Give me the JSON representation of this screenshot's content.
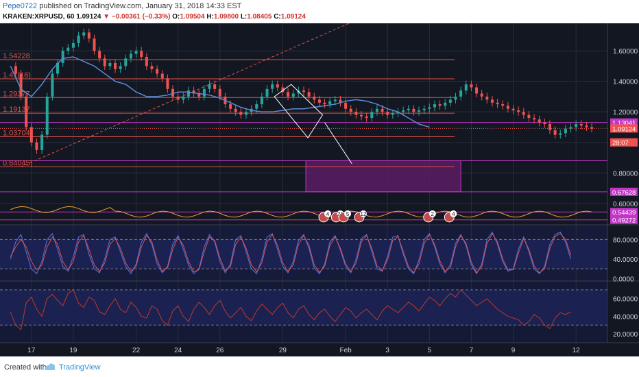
{
  "header": {
    "publisher": "Pepe0722",
    "published_text": "published on TradingView.com, January 31, 2018 14:33 EST",
    "symbol": "KRAKEN:XRPUSD, 60",
    "last": "1.09124",
    "change": "▼ −0.00361 (−0.33%)",
    "o_label": "O:",
    "o": "1.09504",
    "h_label": "H:",
    "h": "1.09800",
    "l_label": "L:",
    "l": "1.08405",
    "c_label": "C:",
    "c": "1.09124"
  },
  "footer": {
    "created_with": "Created with",
    "brand": "TradingView"
  },
  "colors": {
    "background": "#131722",
    "grid": "#2a2e39",
    "candle_up": "#26a69a",
    "candle_down": "#ef5350",
    "ma": "#5b8bd6",
    "fib_line": "#e0524a",
    "purple": "#c236c7",
    "purple_fill": "#5b1c63",
    "osc_band": "#1b2150",
    "stoch_k": "#4c6bd6",
    "stoch_d": "#e0524a",
    "rsi": "#c0392b",
    "volume_ma": "#f0a030"
  },
  "chart_data": {
    "type": "candlestick",
    "symbol": "KRAKEN:XRPUSD",
    "interval": "60",
    "x_labels": [
      "17",
      "19",
      "22",
      "24",
      "26",
      "29",
      "Feb",
      "3",
      "5",
      "7",
      "9",
      "12"
    ],
    "price_axis_ticks": [
      "1.60000",
      "1.40000",
      "1.20000",
      "1",
      "0.80000",
      "0.60000"
    ],
    "ylim": [
      0.46,
      1.78
    ],
    "price_labels": [
      {
        "value": 1.13041,
        "text": "1.13041",
        "color": "#c236c7"
      },
      {
        "value": 1.09124,
        "text": "1.09124",
        "color": "#ef5350"
      },
      {
        "value": 1.0,
        "text": "28:07",
        "color": "#ef5350"
      },
      {
        "value": 0.67628,
        "text": "0.67628",
        "color": "#c236c7"
      },
      {
        "value": 0.54439,
        "text": "0.54439",
        "color": "#c236c7"
      },
      {
        "value": 0.49272,
        "text": "0.49272",
        "color": "#c236c7"
      }
    ],
    "fib_levels": [
      {
        "label": "1.54228",
        "value": 1.54228
      },
      {
        "label": "1.41616",
        "value": 1.41616
      },
      {
        "label": "1.29377",
        "value": 1.29377
      },
      {
        "label": "1.19137",
        "value": 1.19137
      },
      {
        "label": "1.03704",
        "value": 1.03704
      },
      {
        "label": "0.84045",
        "value": 0.84045
      }
    ],
    "fib_level_labels_shown": [
      "1.54228",
      "1.41(16)",
      "1.29377",
      "1.19137",
      "1.03704",
      "0.84045)"
    ],
    "horizontal_lines": [
      1.13041,
      0.88,
      0.67628,
      0.54439,
      0.49272
    ],
    "box": {
      "x_from": 30.1,
      "x_to": 37.5,
      "y_from": 0.67628,
      "y_to": 0.88
    },
    "trendline": {
      "x1": 16.5,
      "y1": 0.84,
      "x2": 35.0,
      "y2": 1.95
    },
    "channel": {
      "points": [
        [
          28.6,
          1.3
        ],
        [
          30.2,
          1.03
        ],
        [
          30.9,
          1.18
        ],
        [
          29.4,
          1.38
        ]
      ]
    },
    "projection": {
      "x1": 31.0,
      "y1": 1.13,
      "x2": 32.3,
      "y2": 0.86
    },
    "close_series": {
      "x_start": 16.0,
      "x_step": 0.25,
      "values": [
        1.5,
        1.45,
        1.3,
        1.1,
        1.0,
        0.95,
        1.05,
        1.3,
        1.45,
        1.52,
        1.6,
        1.62,
        1.65,
        1.7,
        1.72,
        1.68,
        1.6,
        1.55,
        1.5,
        1.52,
        1.48,
        1.5,
        1.55,
        1.58,
        1.6,
        1.56,
        1.5,
        1.48,
        1.45,
        1.42,
        1.35,
        1.3,
        1.28,
        1.3,
        1.34,
        1.32,
        1.3,
        1.35,
        1.38,
        1.35,
        1.3,
        1.25,
        1.22,
        1.2,
        1.18,
        1.2,
        1.22,
        1.25,
        1.3,
        1.35,
        1.38,
        1.36,
        1.33,
        1.3,
        1.32,
        1.34,
        1.33,
        1.3,
        1.28,
        1.26,
        1.25,
        1.27,
        1.28,
        1.26,
        1.22,
        1.2,
        1.18,
        1.17,
        1.16,
        1.2,
        1.22,
        1.2,
        1.18,
        1.19,
        1.2,
        1.21,
        1.22,
        1.2,
        1.21,
        1.22,
        1.23,
        1.25,
        1.24,
        1.26,
        1.28,
        1.3,
        1.34,
        1.38,
        1.36,
        1.32,
        1.3,
        1.28,
        1.26,
        1.25,
        1.24,
        1.22,
        1.21,
        1.2,
        1.18,
        1.16,
        1.15,
        1.13,
        1.12,
        1.08,
        1.05,
        1.06,
        1.09,
        1.1,
        1.12,
        1.11,
        1.1,
        1.09
      ]
    },
    "ma_series": {
      "x_start": 16.0,
      "x_step": 0.5,
      "values": [
        1.5,
        1.35,
        1.3,
        1.38,
        1.48,
        1.55,
        1.56,
        1.53,
        1.5,
        1.45,
        1.4,
        1.38,
        1.33,
        1.3,
        1.3,
        1.31,
        1.33,
        1.33,
        1.32,
        1.31,
        1.29,
        1.26,
        1.23,
        1.21,
        1.2,
        1.2,
        1.21,
        1.22,
        1.22,
        1.23,
        1.24,
        1.25,
        1.27,
        1.28,
        1.27,
        1.25,
        1.22,
        1.2,
        1.16,
        1.12,
        1.1
      ]
    },
    "event_markers": [
      {
        "x": 30.95,
        "label": "4"
      },
      {
        "x": 31.55,
        "label": "29"
      },
      {
        "x": 31.9,
        "label": "5"
      },
      {
        "x": 32.65,
        "label": "12"
      },
      {
        "x": 35.95,
        "label": "2"
      },
      {
        "x": 36.95,
        "label": "4"
      }
    ],
    "stoch_panel": {
      "axis_ticks": [
        "80.0000",
        "40.0000",
        "0.0000"
      ],
      "ylim": [
        -5,
        110
      ],
      "bands": [
        80,
        20
      ],
      "k_series": {
        "x_start": 16.0,
        "x_step": 0.25,
        "values": [
          40,
          75,
          90,
          55,
          20,
          10,
          35,
          80,
          92,
          60,
          25,
          15,
          45,
          85,
          90,
          50,
          20,
          12,
          40,
          80,
          85,
          55,
          25,
          10,
          30,
          75,
          92,
          70,
          30,
          12,
          25,
          70,
          88,
          60,
          28,
          10,
          20,
          65,
          90,
          75,
          35,
          12,
          30,
          80,
          88,
          55,
          20,
          10,
          40,
          85,
          92,
          60,
          25,
          12,
          35,
          78,
          90,
          62,
          22,
          10,
          30,
          75,
          88,
          58,
          25,
          12,
          40,
          82,
          90,
          55,
          20,
          15,
          45,
          85,
          88,
          50,
          20,
          10,
          38,
          80,
          92,
          65,
          30,
          12,
          28,
          72,
          90,
          68,
          28,
          10,
          30,
          80,
          95,
          70,
          35,
          15,
          20,
          60,
          85,
          55,
          20,
          10,
          25,
          70,
          90,
          95,
          75,
          40
        ]
      },
      "d_series": {
        "x_start": 16.0,
        "x_step": 0.25,
        "values": [
          45,
          65,
          80,
          65,
          35,
          18,
          28,
          65,
          85,
          70,
          35,
          18,
          35,
          75,
          88,
          60,
          28,
          15,
          32,
          70,
          82,
          62,
          32,
          15,
          25,
          65,
          88,
          75,
          38,
          15,
          22,
          60,
          85,
          68,
          35,
          14,
          18,
          55,
          85,
          78,
          42,
          16,
          24,
          70,
          85,
          62,
          28,
          14,
          32,
          75,
          90,
          68,
          32,
          15,
          28,
          70,
          88,
          68,
          28,
          13,
          25,
          68,
          85,
          62,
          30,
          14,
          32,
          75,
          88,
          62,
          26,
          16,
          38,
          78,
          86,
          56,
          25,
          12,
          30,
          72,
          90,
          70,
          36,
          15,
          22,
          65,
          88,
          72,
          34,
          12,
          24,
          72,
          92,
          75,
          40,
          18,
          18,
          52,
          82,
          60,
          26,
          12,
          20,
          62,
          86,
          92,
          80,
          48
        ]
      }
    },
    "rsi_panel": {
      "axis_ticks": [
        "60.0000",
        "40.0000",
        "20.0000"
      ],
      "ylim": [
        10,
        80
      ],
      "bands": [
        70,
        30
      ],
      "series": {
        "x_start": 16.0,
        "x_step": 0.25,
        "values": [
          45,
          30,
          25,
          55,
          62,
          48,
          40,
          60,
          65,
          58,
          52,
          66,
          70,
          55,
          50,
          62,
          58,
          45,
          42,
          52,
          60,
          48,
          44,
          56,
          50,
          40,
          38,
          52,
          48,
          35,
          30,
          46,
          52,
          40,
          34,
          48,
          56,
          50,
          42,
          52,
          58,
          46,
          38,
          44,
          50,
          40,
          35,
          46,
          54,
          48,
          42,
          50,
          55,
          44,
          38,
          48,
          52,
          42,
          36,
          44,
          48,
          40,
          34,
          42,
          50,
          46,
          38,
          44,
          48,
          42,
          36,
          46,
          52,
          48,
          44,
          50,
          56,
          52,
          46,
          54,
          62,
          58,
          52,
          60,
          66,
          62,
          70,
          64,
          58,
          52,
          56,
          60,
          54,
          48,
          44,
          40,
          38,
          36,
          30,
          34,
          42,
          38,
          30,
          26,
          38,
          44,
          42,
          45
        ]
      }
    }
  }
}
